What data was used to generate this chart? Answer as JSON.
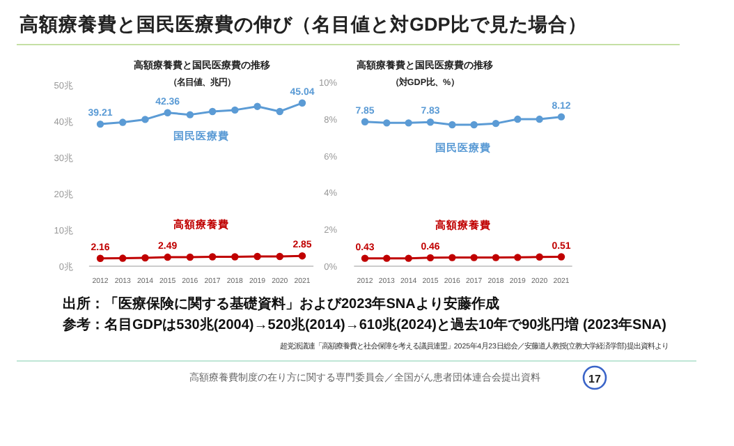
{
  "chart_data": [
    {
      "type": "other",
      "title": "高額療養費と国民医療費の伸び（名目値と対GDP比で見た場合）",
      "annotations": [
        "出所：「医療保険に関する基礎資料」および2023年SNAより安藤作成",
        "参考：名目GDPは530兆(2004)→520兆(2014)→610兆(2024)と過去10年で90兆円増 (2023年SNA)",
        "超党派議連「高額療養費と社会保障を考える議員連盟」2025年4月23日総会／安藤道人教授(立教大学経済学部)提出資料より",
        "高額療養費制度の在り方に関する専門委員会／全国がん患者団体連合会提出資料",
        "17"
      ]
    },
    {
      "type": "line",
      "title": "高額療養費と国民医療費の推移",
      "subtitle": "（名目値、兆円）",
      "categories": [
        "2012",
        "2013",
        "2014",
        "2015",
        "2016",
        "2017",
        "2018",
        "2019",
        "2020",
        "2021"
      ],
      "series": [
        {
          "name": "国民医療費",
          "color": "#5b9bd5",
          "values": [
            39.21,
            39.7,
            40.5,
            42.36,
            41.8,
            42.7,
            43.1,
            44.1,
            42.7,
            45.04
          ],
          "value_labels": [
            "39.21",
            null,
            null,
            "42.36",
            null,
            null,
            null,
            null,
            null,
            "45.04"
          ]
        },
        {
          "name": "高額療養費",
          "color": "#c00000",
          "values": [
            2.16,
            2.2,
            2.3,
            2.49,
            2.5,
            2.6,
            2.6,
            2.7,
            2.7,
            2.85
          ],
          "value_labels": [
            "2.16",
            null,
            null,
            "2.49",
            null,
            null,
            null,
            null,
            null,
            "2.85"
          ]
        }
      ],
      "ylim": [
        0,
        50
      ],
      "yticks": [
        {
          "value": 0,
          "label": "0兆"
        },
        {
          "value": 10,
          "label": "10兆"
        },
        {
          "value": 20,
          "label": "20兆"
        },
        {
          "value": 30,
          "label": "30兆"
        },
        {
          "value": 40,
          "label": "40兆"
        },
        {
          "value": 50,
          "label": "50兆"
        }
      ],
      "marker": "circle"
    },
    {
      "type": "line",
      "title": "高額療養費と国民医療費の推移",
      "subtitle": "（対GDP比、%）",
      "categories": [
        "2012",
        "2013",
        "2014",
        "2015",
        "2016",
        "2017",
        "2018",
        "2019",
        "2020",
        "2021"
      ],
      "series": [
        {
          "name": "国民医療費",
          "color": "#5b9bd5",
          "values": [
            7.85,
            7.79,
            7.79,
            7.83,
            7.69,
            7.69,
            7.76,
            7.99,
            7.99,
            8.12
          ],
          "value_labels": [
            "7.85",
            null,
            null,
            "7.83",
            null,
            null,
            null,
            null,
            null,
            "8.12"
          ]
        },
        {
          "name": "高額療養費",
          "color": "#c00000",
          "values": [
            0.43,
            0.43,
            0.43,
            0.46,
            0.47,
            0.47,
            0.47,
            0.48,
            0.5,
            0.51
          ],
          "value_labels": [
            "0.43",
            null,
            null,
            "0.46",
            null,
            null,
            null,
            null,
            null,
            "0.51"
          ]
        }
      ],
      "ylim": [
        0,
        10
      ],
      "yticks": [
        {
          "value": 0,
          "label": "0%"
        },
        {
          "value": 2,
          "label": "2%"
        },
        {
          "value": 4,
          "label": "4%"
        },
        {
          "value": 6,
          "label": "6%"
        },
        {
          "value": 8,
          "label": "8%"
        },
        {
          "value": 10,
          "label": "10%"
        }
      ],
      "marker": "circle"
    }
  ]
}
